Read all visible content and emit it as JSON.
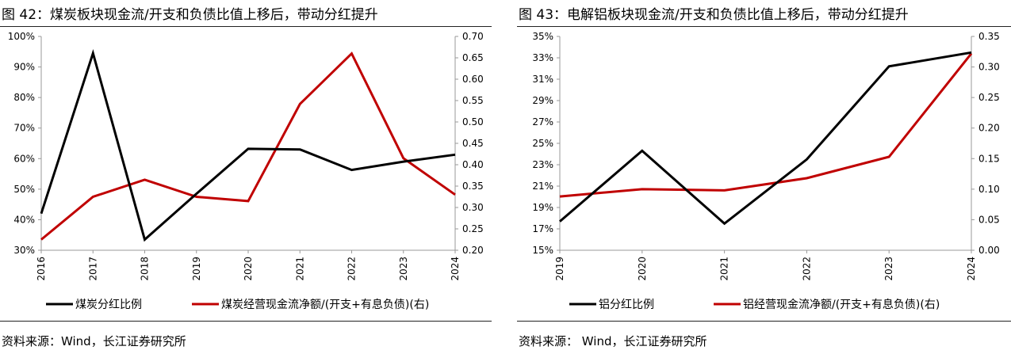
{
  "left": {
    "title": "图 42：煤炭板块现金流/开支和负债比值上移后，带动分红提升",
    "source": "资料来源：Wind，长江证券研究所"
  },
  "right": {
    "title": "图 43：电解铝板块现金流/开支和负债比值上移后，带动分红提升",
    "source": "资料来源：  Wind，长江证券研究所"
  },
  "chart_data": [
    {
      "type": "line",
      "x": [
        "2016",
        "2017",
        "2018",
        "2019",
        "2020",
        "2021",
        "2022",
        "2023",
        "2024"
      ],
      "series": [
        {
          "name": "煤炭分红比例",
          "axis": "left",
          "color": "#000000",
          "values": [
            42,
            94.5,
            33.5,
            48.5,
            63.2,
            63.0,
            56.3,
            59.0,
            61.3
          ]
        },
        {
          "name": "煤炭经营现金流净额/(开支+有息负债)(右)",
          "axis": "right",
          "color": "#c00000",
          "values": [
            0.225,
            0.325,
            0.365,
            0.325,
            0.315,
            0.542,
            0.66,
            0.415,
            0.33
          ]
        }
      ],
      "y_left": {
        "min": 30,
        "max": 100,
        "ticks": [
          "30%",
          "40%",
          "50%",
          "60%",
          "70%",
          "80%",
          "90%",
          "100%"
        ]
      },
      "y_right": {
        "min": 0.2,
        "max": 0.7,
        "ticks": [
          "0.20",
          "0.25",
          "0.30",
          "0.35",
          "0.40",
          "0.45",
          "0.50",
          "0.55",
          "0.60",
          "0.65",
          "0.70"
        ]
      },
      "legend": "bottom"
    },
    {
      "type": "line",
      "x": [
        "2019",
        "2020",
        "2021",
        "2022",
        "2023",
        "2024"
      ],
      "series": [
        {
          "name": "铝分红比例",
          "axis": "left",
          "color": "#000000",
          "values": [
            17.7,
            24.3,
            17.5,
            23.5,
            32.2,
            33.5
          ]
        },
        {
          "name": "铝经营现金流净额/(开支+有息负债)(右)",
          "axis": "right",
          "color": "#c00000",
          "values": [
            0.088,
            0.1,
            0.098,
            0.118,
            0.153,
            0.322
          ]
        }
      ],
      "y_left": {
        "min": 15,
        "max": 35,
        "ticks": [
          "15%",
          "17%",
          "19%",
          "21%",
          "23%",
          "25%",
          "27%",
          "29%",
          "31%",
          "33%",
          "35%"
        ]
      },
      "y_right": {
        "min": 0,
        "max": 0.35,
        "ticks": [
          "0.00",
          "0.05",
          "0.10",
          "0.15",
          "0.20",
          "0.25",
          "0.30",
          "0.35"
        ]
      },
      "legend": "bottom"
    }
  ]
}
